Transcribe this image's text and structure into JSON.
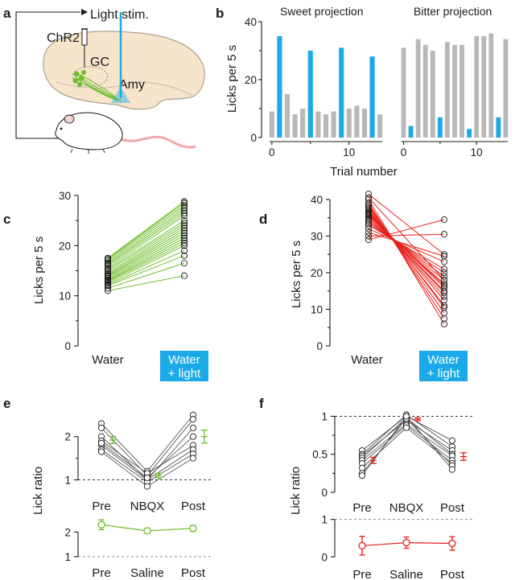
{
  "colors": {
    "light": "#1aaae8",
    "bar_grey": "#b8b8b8",
    "green": "#6cbd28",
    "red": "#e8211c",
    "brain": "#f6e4cb",
    "mouse_tail": "#f0a8a8"
  },
  "panels": {
    "a": "a",
    "b": "b",
    "c": "c",
    "d": "d",
    "e": "e",
    "f": "f"
  },
  "schematic": {
    "light_stim": "Light stim.",
    "chr2": "ChR2",
    "gc": "GC",
    "amy": "Amy"
  },
  "chart_data": [
    {
      "id": "b-sweet",
      "type": "bar",
      "title": "Sweet projection",
      "ylabel": "Licks per 5 s",
      "xlabel": "Trial number",
      "ylim": [
        0,
        40
      ],
      "yticks": [
        0,
        20,
        40
      ],
      "xticks": [
        0,
        10
      ],
      "trials": [
        0,
        1,
        2,
        3,
        4,
        5,
        6,
        7,
        8,
        9,
        10,
        11,
        12,
        13,
        14
      ],
      "values": [
        9,
        35,
        15,
        8,
        10,
        30,
        9,
        8,
        9,
        31,
        10,
        11,
        10,
        28,
        8
      ],
      "light_on": [
        false,
        true,
        false,
        false,
        false,
        true,
        false,
        false,
        false,
        true,
        false,
        false,
        false,
        true,
        false
      ]
    },
    {
      "id": "b-bitter",
      "type": "bar",
      "title": "Bitter projection",
      "ylim": [
        0,
        40
      ],
      "xticks": [
        0,
        10
      ],
      "trials": [
        0,
        1,
        2,
        3,
        4,
        5,
        6,
        7,
        8,
        9,
        10,
        11,
        12,
        13,
        14
      ],
      "values": [
        31,
        4,
        34,
        32,
        30,
        7,
        33,
        32,
        32,
        3,
        35,
        35,
        36,
        7,
        34
      ],
      "light_on": [
        false,
        true,
        false,
        false,
        false,
        true,
        false,
        false,
        false,
        true,
        false,
        false,
        false,
        true,
        false
      ]
    },
    {
      "id": "c",
      "type": "paired-line",
      "ylabel": "Licks per 5 s",
      "categories": [
        "Water",
        "Water\n+ light"
      ],
      "cat_label_1": "Water",
      "cat_label_2a": "Water",
      "cat_label_2b": "+ light",
      "ylim": [
        0,
        30
      ],
      "yticks": [
        0,
        10,
        20,
        30
      ],
      "pairs": [
        [
          11,
          14
        ],
        [
          11.5,
          16.5
        ],
        [
          12,
          18
        ],
        [
          12.2,
          19
        ],
        [
          12.5,
          20
        ],
        [
          12.8,
          20.5
        ],
        [
          13,
          21
        ],
        [
          13.2,
          21.5
        ],
        [
          13.5,
          22
        ],
        [
          13.8,
          22.5
        ],
        [
          14,
          23
        ],
        [
          14.3,
          23.5
        ],
        [
          14.6,
          24
        ],
        [
          15,
          24.5
        ],
        [
          15.3,
          25
        ],
        [
          15.6,
          26
        ],
        [
          16,
          26.5
        ],
        [
          16.3,
          27
        ],
        [
          16.6,
          27.5
        ],
        [
          17,
          28
        ],
        [
          17.3,
          28.5
        ],
        [
          17.5,
          28.8
        ]
      ]
    },
    {
      "id": "d",
      "type": "paired-line",
      "ylabel": "Licks per 5 s",
      "categories": [
        "Water",
        "Water\n+ light"
      ],
      "cat_label_1": "Water",
      "cat_label_2a": "Water",
      "cat_label_2b": "+ light",
      "ylim": [
        0,
        40
      ],
      "yticks": [
        0,
        10,
        20,
        30,
        40
      ],
      "pairs": [
        [
          29,
          34.5
        ],
        [
          30,
          30.5
        ],
        [
          31,
          24.5
        ],
        [
          32,
          23
        ],
        [
          33,
          21
        ],
        [
          33.5,
          20
        ],
        [
          34,
          19
        ],
        [
          34.5,
          18
        ],
        [
          35,
          17
        ],
        [
          35.5,
          16.5
        ],
        [
          35.8,
          16
        ],
        [
          36,
          15
        ],
        [
          36.3,
          14.5
        ],
        [
          36.6,
          13.5
        ],
        [
          37,
          12.5
        ],
        [
          37.5,
          11
        ],
        [
          38,
          10.5
        ],
        [
          38.5,
          9
        ],
        [
          39,
          7.5
        ],
        [
          40,
          6
        ],
        [
          40.5,
          18
        ],
        [
          41.5,
          25
        ]
      ]
    },
    {
      "id": "e-top",
      "type": "paired-line",
      "ylabel": "Lick ratio",
      "categories": [
        "Pre",
        "NBQX",
        "Post"
      ],
      "ylim": [
        0.75,
        2.7
      ],
      "yticks": [
        1,
        2
      ],
      "reference": 1,
      "individuals": [
        [
          2.3,
          1.2,
          2.5
        ],
        [
          2.2,
          1.1,
          2.4
        ],
        [
          2.0,
          1.0,
          2.2
        ],
        [
          1.9,
          1.15,
          1.8
        ],
        [
          1.8,
          1.0,
          1.7
        ],
        [
          1.7,
          0.95,
          1.6
        ],
        [
          1.65,
          0.85,
          1.5
        ],
        [
          1.85,
          1.05,
          2.0
        ]
      ],
      "mean": [
        1.92,
        1.1,
        2.0
      ],
      "sem": [
        0.08,
        0.05,
        0.15
      ]
    },
    {
      "id": "e-bottom",
      "type": "line",
      "categories": [
        "Pre",
        "Saline",
        "Post"
      ],
      "ylim": [
        0.9,
        2.7
      ],
      "yticks": [
        1,
        2
      ],
      "reference": 1,
      "mean": [
        2.3,
        2.05,
        2.15
      ],
      "sem": [
        0.2,
        0.1,
        0.12
      ]
    },
    {
      "id": "f-top",
      "type": "paired-line",
      "ylabel": "Lick ratio",
      "categories": [
        "Pre",
        "NBQX",
        "Post"
      ],
      "ylim": [
        0,
        1.1
      ],
      "yticks": [
        0,
        0.5,
        1
      ],
      "ytick_labels": [
        "0",
        "0.5",
        "1"
      ],
      "reference": 1,
      "individuals": [
        [
          0.55,
          1.0,
          0.68
        ],
        [
          0.5,
          1.02,
          0.6
        ],
        [
          0.48,
          0.95,
          0.55
        ],
        [
          0.45,
          0.98,
          0.5
        ],
        [
          0.42,
          0.9,
          0.48
        ],
        [
          0.38,
          0.88,
          0.42
        ],
        [
          0.32,
          0.85,
          0.38
        ],
        [
          0.25,
          0.97,
          0.35
        ],
        [
          0.22,
          1.0,
          0.3
        ]
      ],
      "mean": [
        0.42,
        0.96,
        0.47
      ],
      "sem": [
        0.04,
        0.02,
        0.05
      ]
    },
    {
      "id": "f-bottom",
      "type": "line",
      "categories": [
        "Pre",
        "Saline",
        "Post"
      ],
      "ylim": [
        -0.1,
        1.1
      ],
      "yticks": [
        0,
        1
      ],
      "reference": 1,
      "mean": [
        0.3,
        0.38,
        0.36
      ],
      "sem": [
        0.25,
        0.15,
        0.18
      ]
    }
  ]
}
